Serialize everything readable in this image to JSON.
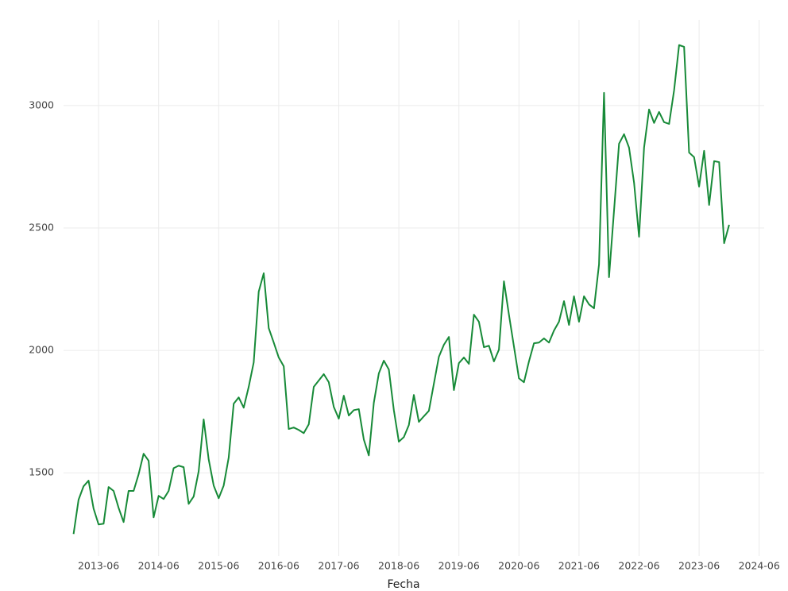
{
  "chart_data": {
    "type": "line",
    "x_label": "Fecha",
    "x": [
      "2013-01",
      "2013-02",
      "2013-03",
      "2013-04",
      "2013-05",
      "2013-06",
      "2013-07",
      "2013-08",
      "2013-09",
      "2013-10",
      "2013-11",
      "2013-12",
      "2014-01",
      "2014-02",
      "2014-03",
      "2014-04",
      "2014-05",
      "2014-06",
      "2014-07",
      "2014-08",
      "2014-09",
      "2014-10",
      "2014-11",
      "2014-12",
      "2015-01",
      "2015-02",
      "2015-03",
      "2015-04",
      "2015-05",
      "2015-06",
      "2015-07",
      "2015-08",
      "2015-09",
      "2015-10",
      "2015-11",
      "2015-12",
      "2016-01",
      "2016-02",
      "2016-03",
      "2016-04",
      "2016-05",
      "2016-06",
      "2016-07",
      "2016-08",
      "2016-09",
      "2016-10",
      "2016-11",
      "2016-12",
      "2017-01",
      "2017-02",
      "2017-03",
      "2017-04",
      "2017-05",
      "2017-06",
      "2017-07",
      "2017-08",
      "2017-09",
      "2017-10",
      "2017-11",
      "2017-12",
      "2018-01",
      "2018-02",
      "2018-03",
      "2018-04",
      "2018-05",
      "2018-06",
      "2018-07",
      "2018-08",
      "2018-09",
      "2018-10",
      "2018-11",
      "2018-12",
      "2019-01",
      "2019-02",
      "2019-03",
      "2019-04",
      "2019-05",
      "2019-06",
      "2019-07",
      "2019-08",
      "2019-09",
      "2019-10",
      "2019-11",
      "2019-12",
      "2020-01",
      "2020-02",
      "2020-03",
      "2020-04",
      "2020-05",
      "2020-06",
      "2020-07",
      "2020-08",
      "2020-09",
      "2020-10",
      "2020-11",
      "2020-12",
      "2021-01",
      "2021-02",
      "2021-03",
      "2021-04",
      "2021-05",
      "2021-06",
      "2021-07",
      "2021-08",
      "2021-09",
      "2021-10",
      "2021-11",
      "2021-12",
      "2022-01",
      "2022-02",
      "2022-03",
      "2022-04",
      "2022-05",
      "2022-06",
      "2022-07",
      "2022-08",
      "2022-09",
      "2022-10",
      "2022-11",
      "2022-12",
      "2023-01",
      "2023-02",
      "2023-03",
      "2023-04",
      "2023-05",
      "2023-06",
      "2023-07",
      "2023-08",
      "2023-09",
      "2023-10",
      "2023-11",
      "2023-12"
    ],
    "values": [
      1250,
      1390,
      1445,
      1468,
      1354,
      1289,
      1292,
      1442,
      1426,
      1357,
      1299,
      1426,
      1426,
      1494,
      1578,
      1549,
      1318,
      1406,
      1393,
      1426,
      1519,
      1529,
      1523,
      1373,
      1403,
      1506,
      1718,
      1555,
      1448,
      1396,
      1448,
      1562,
      1782,
      1808,
      1766,
      1851,
      1951,
      2240,
      2315,
      2091,
      2032,
      1971,
      1935,
      1679,
      1685,
      1675,
      1662,
      1698,
      1851,
      1877,
      1903,
      1870,
      1769,
      1721,
      1815,
      1734,
      1756,
      1760,
      1636,
      1571,
      1786,
      1906,
      1958,
      1922,
      1756,
      1627,
      1646,
      1695,
      1818,
      1708,
      1731,
      1753,
      1864,
      1974,
      2023,
      2055,
      1838,
      1948,
      1971,
      1945,
      2146,
      2117,
      2013,
      2019,
      1955,
      2003,
      2282,
      2146,
      2016,
      1886,
      1870,
      1955,
      2029,
      2032,
      2049,
      2032,
      2081,
      2117,
      2201,
      2104,
      2221,
      2117,
      2221,
      2188,
      2172,
      2351,
      3052,
      2299,
      2571,
      2844,
      2883,
      2828,
      2685,
      2464,
      2828,
      2984,
      2929,
      2974,
      2932,
      2925,
      3062,
      3247,
      3240,
      2808,
      2789,
      2669,
      2815,
      2594,
      2773,
      2769,
      2438,
      2513
    ],
    "color": "#178a38",
    "xlim": [
      "2012-11",
      "2024-07"
    ],
    "xticks": [
      "2013-06",
      "2014-06",
      "2015-06",
      "2016-06",
      "2017-06",
      "2018-06",
      "2019-06",
      "2020-06",
      "2021-06",
      "2022-06",
      "2023-06",
      "2024-06"
    ],
    "ylim": [
      1160,
      3350
    ],
    "yticks": [
      1500,
      2000,
      2500,
      3000
    ],
    "grid": true
  }
}
